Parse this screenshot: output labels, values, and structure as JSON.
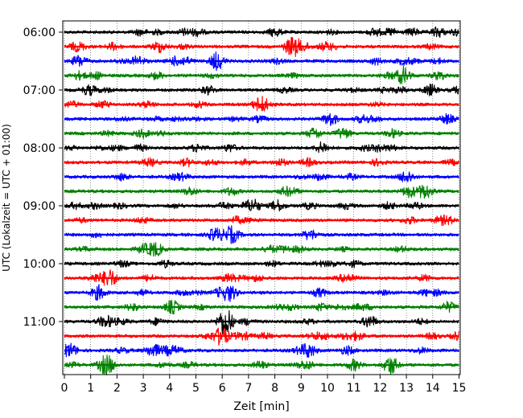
{
  "chart_data": {
    "type": "line",
    "title": "",
    "xlabel": "Zeit  [min]",
    "ylabel": "UTC (Lokalzeit = UTC + 01:00)",
    "xlim": [
      0,
      15
    ],
    "x_ticks": [
      "0",
      "1",
      "2",
      "3",
      "4",
      "5",
      "6",
      "7",
      "8",
      "9",
      "10",
      "11",
      "12",
      "13",
      "14",
      "15"
    ],
    "y_ticks": [
      "06:00",
      "07:00",
      "08:00",
      "09:00",
      "10:00",
      "11:00"
    ],
    "grid": "vertical dotted",
    "legend": "none",
    "trace_interval_minutes": 15,
    "trace_colors": [
      "#000000",
      "#ff0000",
      "#0000ff",
      "#008000"
    ],
    "series_start_times": [
      "06:00",
      "06:15",
      "06:30",
      "06:45",
      "07:00",
      "07:15",
      "07:30",
      "07:45",
      "08:00",
      "08:15",
      "08:30",
      "08:45",
      "09:00",
      "09:15",
      "09:30",
      "09:45",
      "10:00",
      "10:15",
      "10:30",
      "10:45",
      "11:00",
      "11:15",
      "11:30",
      "11:45"
    ],
    "events": [
      {
        "start": "06:00",
        "minute": 8.0,
        "amplitude": 0.35
      },
      {
        "start": "06:00",
        "minute": 14.2,
        "amplitude": 0.4
      },
      {
        "start": "06:15",
        "minute": 3.6,
        "amplitude": 0.45
      },
      {
        "start": "06:15",
        "minute": 8.6,
        "amplitude": 0.5
      },
      {
        "start": "06:30",
        "minute": 2.8,
        "amplitude": 0.4
      },
      {
        "start": "06:30",
        "minute": 5.8,
        "amplitude": 0.75
      },
      {
        "start": "07:00",
        "minute": 13.9,
        "amplitude": 0.45
      },
      {
        "start": "07:15",
        "minute": 7.4,
        "amplitude": 0.4
      },
      {
        "start": "07:30",
        "minute": 10.1,
        "amplitude": 0.55
      },
      {
        "start": "07:45",
        "minute": 9.5,
        "amplitude": 0.45
      },
      {
        "start": "08:00",
        "minute": 9.8,
        "amplitude": 0.45
      },
      {
        "start": "08:30",
        "minute": 13.0,
        "amplitude": 0.55
      },
      {
        "start": "08:45",
        "minute": 13.7,
        "amplitude": 0.65
      },
      {
        "start": "09:00",
        "minute": 7.2,
        "amplitude": 0.5
      },
      {
        "start": "09:00",
        "minute": 8.1,
        "amplitude": 0.45
      },
      {
        "start": "09:30",
        "minute": 6.3,
        "amplitude": 0.5
      },
      {
        "start": "09:45",
        "minute": 3.4,
        "amplitude": 0.45
      },
      {
        "start": "10:30",
        "minute": 1.3,
        "amplitude": 0.6
      },
      {
        "start": "10:30",
        "minute": 6.3,
        "amplitude": 0.6
      },
      {
        "start": "10:45",
        "minute": 4.1,
        "amplitude": 0.55
      },
      {
        "start": "10:45",
        "minute": 14.6,
        "amplitude": 0.4
      },
      {
        "start": "11:00",
        "minute": 6.1,
        "amplitude": 1.1
      },
      {
        "start": "11:00",
        "minute": 11.6,
        "amplitude": 0.5
      },
      {
        "start": "11:15",
        "minute": 6.0,
        "amplitude": 0.45
      },
      {
        "start": "11:30",
        "minute": 3.4,
        "amplitude": 0.4
      },
      {
        "start": "11:30",
        "minute": 9.3,
        "amplitude": 0.55
      },
      {
        "start": "11:45",
        "minute": 12.4,
        "amplitude": 0.8
      },
      {
        "start": "11:45",
        "minute": 11.0,
        "amplitude": 0.45
      },
      {
        "start": "11:45",
        "minute": 1.6,
        "amplitude": 0.45
      }
    ]
  }
}
